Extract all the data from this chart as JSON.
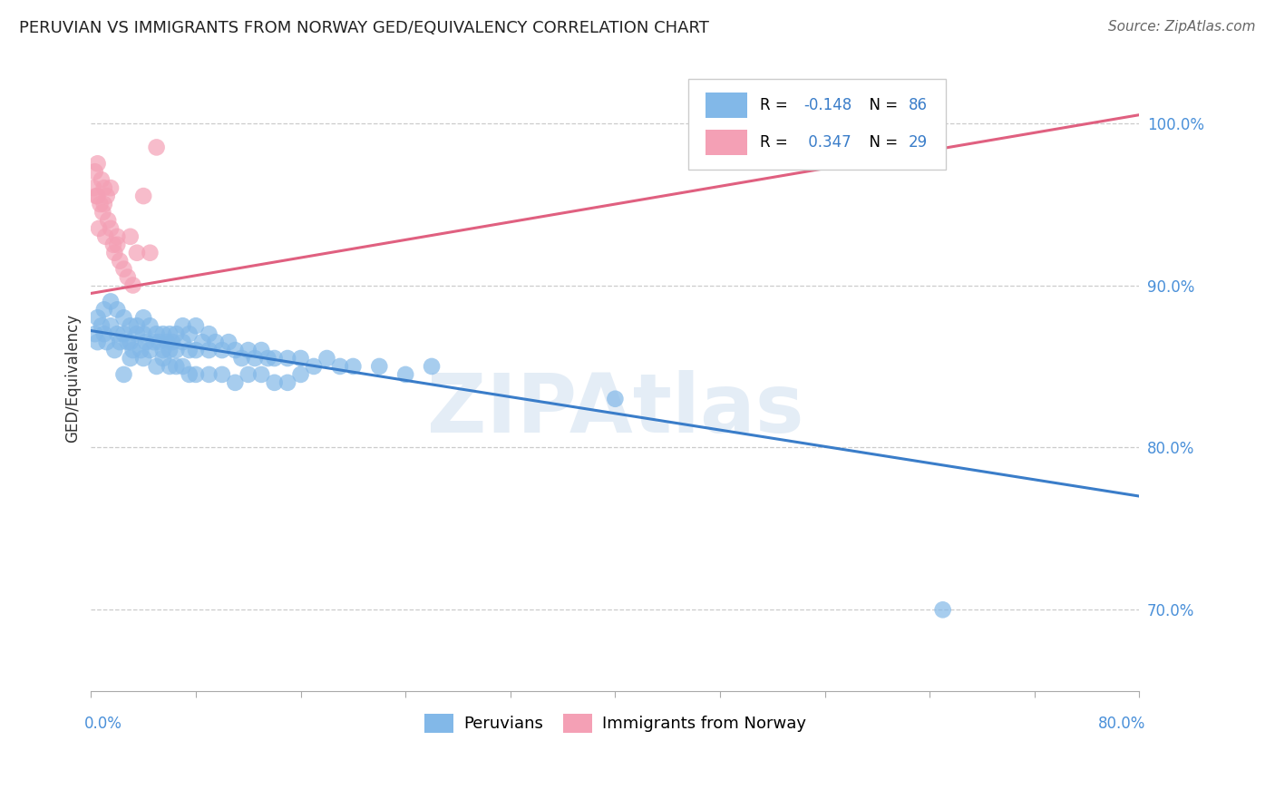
{
  "title": "PERUVIAN VS IMMIGRANTS FROM NORWAY GED/EQUIVALENCY CORRELATION CHART",
  "source": "Source: ZipAtlas.com",
  "ylabel": "GED/Equivalency",
  "blue_R": -0.148,
  "blue_N": 86,
  "pink_R": 0.347,
  "pink_N": 29,
  "blue_color": "#82b8e8",
  "pink_color": "#f4a0b5",
  "blue_line_color": "#3a7dc9",
  "pink_line_color": "#e06080",
  "legend_label_blue": "Peruvians",
  "legend_label_pink": "Immigrants from Norway",
  "watermark": "ZIPAtlas",
  "xlim": [
    0.0,
    80.0
  ],
  "ylim": [
    65.0,
    103.5
  ],
  "yticks": [
    70.0,
    80.0,
    90.0,
    100.0
  ],
  "blue_scatter_x": [
    0.3,
    0.5,
    0.5,
    0.8,
    1.0,
    1.0,
    1.2,
    1.5,
    1.5,
    1.8,
    2.0,
    2.0,
    2.2,
    2.5,
    2.5,
    2.8,
    3.0,
    3.0,
    3.2,
    3.5,
    3.5,
    3.8,
    4.0,
    4.0,
    4.2,
    4.5,
    4.5,
    4.8,
    5.0,
    5.2,
    5.5,
    5.5,
    5.8,
    6.0,
    6.0,
    6.2,
    6.5,
    6.5,
    7.0,
    7.0,
    7.5,
    7.5,
    8.0,
    8.0,
    8.5,
    9.0,
    9.0,
    9.5,
    10.0,
    10.5,
    11.0,
    11.5,
    12.0,
    12.5,
    13.0,
    13.5,
    14.0,
    15.0,
    16.0,
    17.0,
    18.0,
    19.0,
    20.0,
    22.0,
    24.0,
    26.0,
    3.0,
    4.0,
    5.0,
    6.0,
    7.0,
    8.0,
    9.0,
    10.0,
    11.0,
    12.0,
    13.0,
    14.0,
    15.0,
    16.0,
    40.0,
    65.0,
    5.5,
    6.5,
    7.5,
    2.5
  ],
  "blue_scatter_y": [
    87.0,
    86.5,
    88.0,
    87.5,
    87.0,
    88.5,
    86.5,
    87.5,
    89.0,
    86.0,
    87.0,
    88.5,
    86.5,
    87.0,
    88.0,
    86.5,
    86.5,
    87.5,
    86.0,
    87.0,
    87.5,
    86.0,
    87.0,
    88.0,
    86.5,
    87.5,
    86.0,
    86.5,
    87.0,
    86.5,
    86.0,
    87.0,
    86.5,
    86.0,
    87.0,
    86.5,
    86.0,
    87.0,
    86.5,
    87.5,
    86.0,
    87.0,
    86.0,
    87.5,
    86.5,
    86.0,
    87.0,
    86.5,
    86.0,
    86.5,
    86.0,
    85.5,
    86.0,
    85.5,
    86.0,
    85.5,
    85.5,
    85.5,
    85.5,
    85.0,
    85.5,
    85.0,
    85.0,
    85.0,
    84.5,
    85.0,
    85.5,
    85.5,
    85.0,
    85.0,
    85.0,
    84.5,
    84.5,
    84.5,
    84.0,
    84.5,
    84.5,
    84.0,
    84.0,
    84.5,
    83.0,
    70.0,
    85.5,
    85.0,
    84.5,
    84.5
  ],
  "pink_scatter_x": [
    0.2,
    0.3,
    0.5,
    0.5,
    0.7,
    0.8,
    0.9,
    1.0,
    1.0,
    1.2,
    1.3,
    1.5,
    1.5,
    1.7,
    1.8,
    2.0,
    2.0,
    2.2,
    2.5,
    2.8,
    3.0,
    3.2,
    3.5,
    4.0,
    4.5,
    5.0,
    0.4,
    0.6,
    1.1
  ],
  "pink_scatter_y": [
    96.0,
    97.0,
    95.5,
    97.5,
    95.0,
    96.5,
    94.5,
    95.0,
    96.0,
    95.5,
    94.0,
    93.5,
    96.0,
    92.5,
    92.0,
    92.5,
    93.0,
    91.5,
    91.0,
    90.5,
    93.0,
    90.0,
    92.0,
    95.5,
    92.0,
    98.5,
    95.5,
    93.5,
    93.0
  ],
  "blue_trendline_x0": 0.0,
  "blue_trendline_x1": 80.0,
  "blue_trendline_y0": 87.2,
  "blue_trendline_y1": 77.0,
  "pink_trendline_x0": 0.0,
  "pink_trendline_x1": 80.0,
  "pink_trendline_y0": 89.5,
  "pink_trendline_y1": 100.5
}
